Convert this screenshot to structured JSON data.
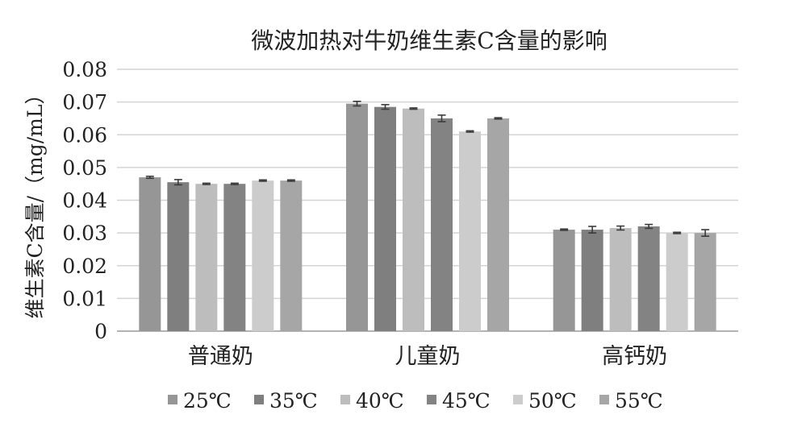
{
  "chart_data": {
    "type": "bar",
    "title": "微波加热对牛奶维生素C含量的影响",
    "xlabel": "",
    "ylabel": "维生素C含量/（mg/mL）",
    "ylim": [
      0,
      0.08
    ],
    "yticks": [
      "0",
      "0.01",
      "0.02",
      "0.03",
      "0.04",
      "0.05",
      "0.06",
      "0.07",
      "0.08"
    ],
    "grid": true,
    "legend_position": "bottom",
    "categories": [
      "普通奶",
      "儿童奶",
      "高钙奶"
    ],
    "series": [
      {
        "name": "25℃",
        "color": "#969696",
        "values": [
          0.047,
          0.0695,
          0.031
        ],
        "errors": [
          0.0003,
          0.0007,
          0.0002
        ]
      },
      {
        "name": "35℃",
        "color": "#7f7f7f",
        "values": [
          0.0455,
          0.0685,
          0.031
        ],
        "errors": [
          0.0008,
          0.0007,
          0.001
        ]
      },
      {
        "name": "40℃",
        "color": "#bdbdbd",
        "values": [
          0.045,
          0.068,
          0.0315
        ],
        "errors": [
          0.0002,
          0.0002,
          0.0006
        ]
      },
      {
        "name": "45℃",
        "color": "#838383",
        "values": [
          0.045,
          0.065,
          0.032
        ],
        "errors": [
          0.0002,
          0.001,
          0.0006
        ]
      },
      {
        "name": "50℃",
        "color": "#cccccc",
        "values": [
          0.046,
          0.061,
          0.03
        ],
        "errors": [
          0.0002,
          0.0002,
          0.0002
        ]
      },
      {
        "name": "55℃",
        "color": "#a6a6a6",
        "values": [
          0.046,
          0.065,
          0.03
        ],
        "errors": [
          0.0002,
          0.0002,
          0.001
        ]
      }
    ]
  }
}
